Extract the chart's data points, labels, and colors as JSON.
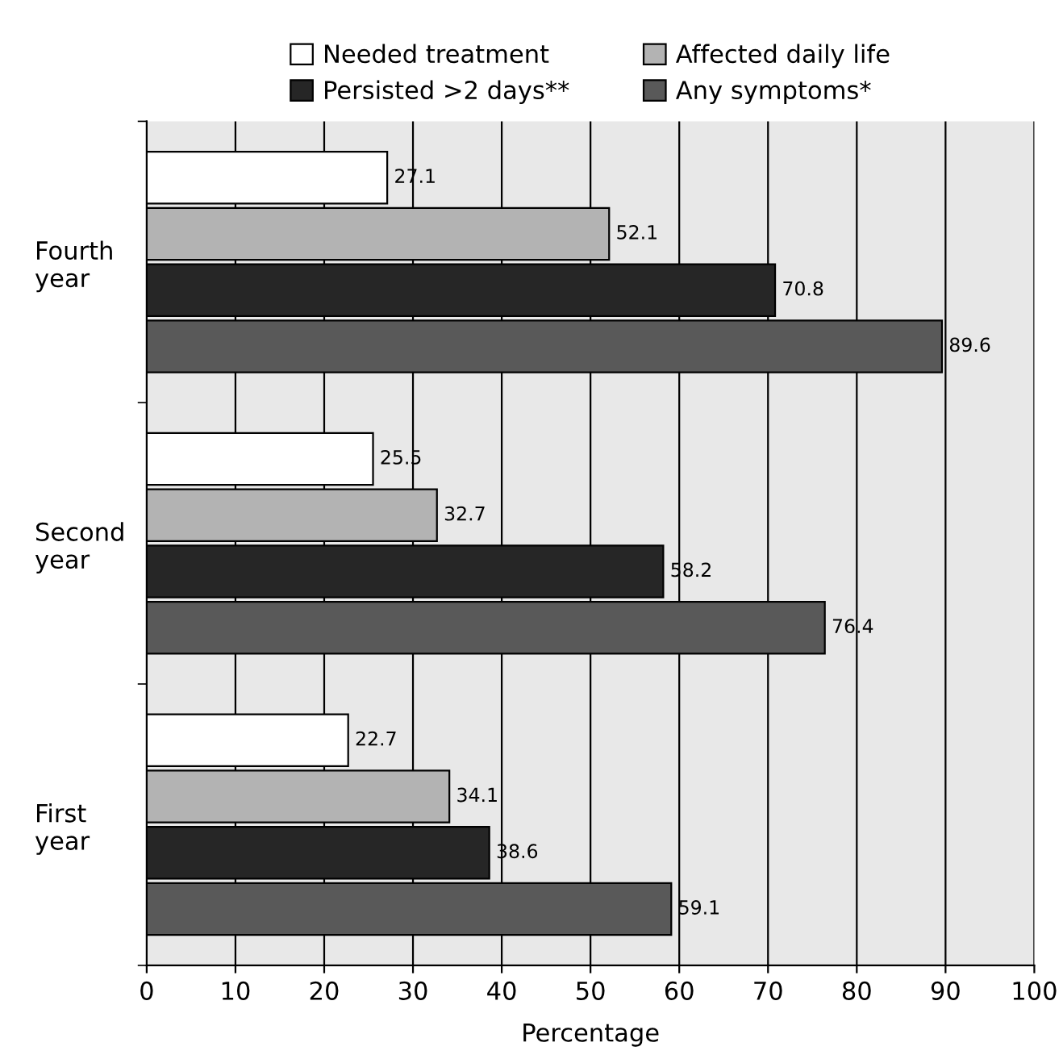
{
  "chart_data": {
    "type": "bar",
    "orientation": "horizontal",
    "xlabel": "Percentage",
    "categories": [
      "Fourth year",
      "Second year",
      "First year"
    ],
    "series": [
      {
        "name": "Needed treatment",
        "color": "#ffffff",
        "values": [
          27.1,
          25.5,
          22.7
        ]
      },
      {
        "name": "Affected daily life",
        "color": "#b3b3b3",
        "values": [
          52.1,
          32.7,
          34.1
        ]
      },
      {
        "name": "Persisted >2 days**",
        "color": "#262626",
        "values": [
          70.8,
          58.2,
          38.6
        ]
      },
      {
        "name": "Any symptoms*",
        "color": "#595959",
        "values": [
          89.6,
          76.4,
          59.1
        ]
      }
    ],
    "xlim": [
      0,
      100
    ],
    "xticks": [
      0,
      10,
      20,
      30,
      40,
      50,
      60,
      70,
      80,
      90,
      100
    ],
    "grid": "x",
    "legend": "top",
    "data_labels": true
  }
}
